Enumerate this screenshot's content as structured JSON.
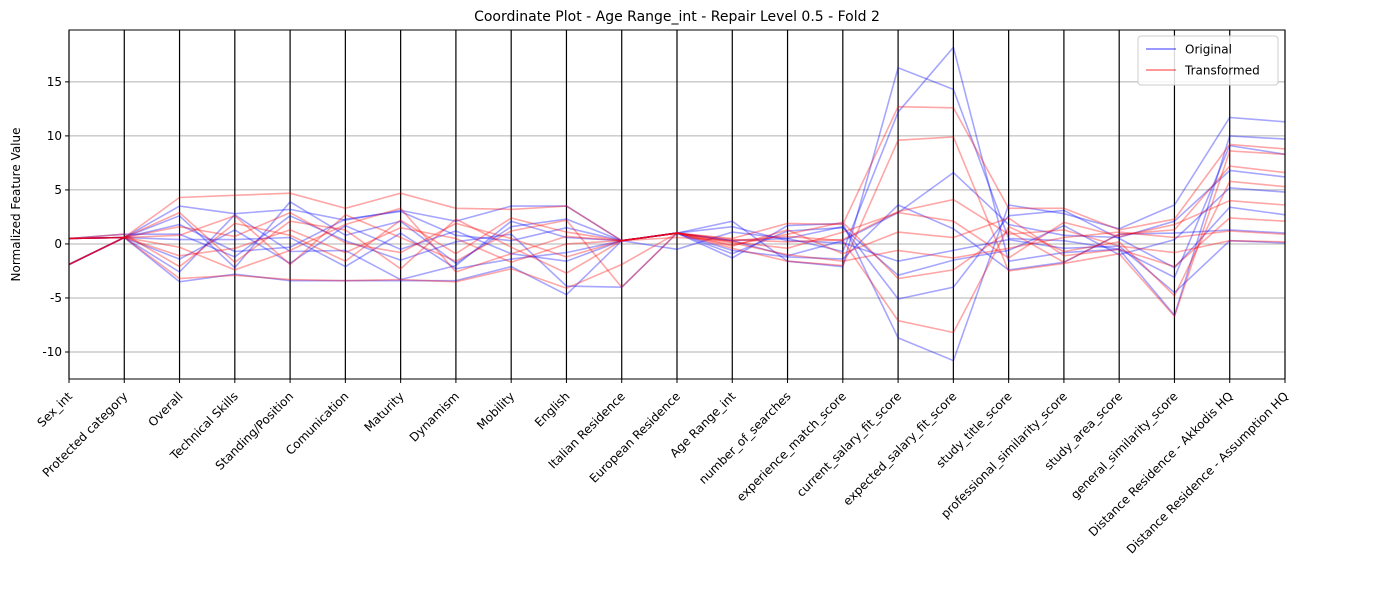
{
  "chart_data": {
    "type": "parallel_coordinates",
    "title": "Coordinate Plot - Age Range_int - Repair Level 0.5 - Fold 2",
    "ylabel": "Normalized Feature Value",
    "ylim": [
      -12.5,
      19.8
    ],
    "yticks": [
      -10,
      -5,
      0,
      5,
      10,
      15
    ],
    "grid": "horizontal",
    "legend_position": "top-right",
    "colors": {
      "original": "#0000ff",
      "transformed": "#ff0000"
    },
    "axes": [
      "Sex_int",
      "Protected category",
      "Overall",
      "Technical Skills",
      "Standing/Position",
      "Comunication",
      "Maturity",
      "Dynamism",
      "Mobility",
      "English",
      "Italian Residence",
      "European Residence",
      "Age Range_int",
      "number_of_searches",
      "experience_match_score",
      "current_salary_fit_score",
      "expected_salary_fit_score",
      "study_title_score",
      "professional_similarity_score",
      "study_area_score",
      "general_similarity_score",
      "Distance Residence - Akkodis HQ",
      "Distance Residence - Assumption HQ"
    ],
    "series": [
      {
        "name": "Original",
        "color": "#0000ff",
        "lines": [
          [
            0.5,
            0.6,
            -3.5,
            -2.8,
            -3.4,
            -3.4,
            -3.4,
            -3.4,
            -2.1,
            -4.7,
            0.3,
            1.0,
            2.1,
            -1.6,
            -2.1,
            16.3,
            14.3,
            0.5,
            0.3,
            -0.5,
            -6.6,
            10.0,
            9.7
          ],
          [
            0.5,
            0.6,
            3.5,
            2.8,
            3.2,
            2.2,
            3.1,
            2.1,
            3.5,
            3.5,
            0.3,
            1.0,
            -1.3,
            1.7,
            1.9,
            -8.7,
            -10.8,
            3.6,
            2.8,
            1.4,
            3.6,
            11.7,
            11.3
          ],
          [
            -1.9,
            0.6,
            -2.6,
            2.7,
            -0.7,
            -0.6,
            -3.3,
            -2.0,
            2.1,
            0.6,
            0.3,
            1.0,
            0.3,
            0.5,
            -0.7,
            12.2,
            18.2,
            -1.6,
            -0.8,
            -0.5,
            -3.1,
            9.1,
            8.3
          ],
          [
            0.5,
            0.9,
            0.9,
            -1.2,
            2.6,
            0.3,
            -1.5,
            0.2,
            0.9,
            -3.9,
            -4.0,
            1.0,
            0.3,
            -1.1,
            0.3,
            2.9,
            6.6,
            1.8,
            0.8,
            0.6,
            2.1,
            6.8,
            6.2
          ],
          [
            -1.9,
            0.6,
            2.6,
            -2.2,
            3.9,
            0.8,
            2.1,
            -1.8,
            1.6,
            2.3,
            0.3,
            -0.5,
            1.1,
            0.5,
            1.6,
            -5.1,
            -4.0,
            2.6,
            3.1,
            0.5,
            -2.2,
            3.4,
            2.7
          ],
          [
            0.5,
            0.6,
            -1.4,
            1.3,
            -1.8,
            1.7,
            -0.5,
            1.2,
            -0.9,
            -1.6,
            0.3,
            1.0,
            -0.6,
            -1.2,
            -1.4,
            3.6,
            1.4,
            -2.4,
            -1.7,
            0.9,
            1.0,
            1.3,
            1.0
          ],
          [
            -1.9,
            0.6,
            0.4,
            0.4,
            0.6,
            -2.1,
            1.0,
            -2.3,
            -1.4,
            -0.8,
            0.3,
            1.0,
            1.6,
            0.3,
            0.1,
            -1.6,
            -0.6,
            0.4,
            -0.4,
            -0.2,
            -4.5,
            0.3,
            0.1
          ],
          [
            0.5,
            0.6,
            1.8,
            -0.7,
            -0.3,
            2.3,
            3.0,
            0.8,
            0.3,
            1.5,
            0.3,
            1.0,
            -0.9,
            1.2,
            1.5,
            -2.9,
            -1.5,
            -0.6,
            1.7,
            -1.0,
            0.4,
            5.2,
            4.8
          ]
        ]
      },
      {
        "name": "Transformed",
        "color": "#ff0000",
        "lines": [
          [
            0.5,
            0.6,
            4.3,
            4.5,
            4.7,
            3.3,
            4.7,
            3.3,
            3.2,
            3.5,
            0.3,
            1.0,
            0.5,
            1.9,
            1.8,
            12.7,
            12.6,
            3.3,
            3.3,
            1.3,
            2.3,
            9.2,
            8.8
          ],
          [
            -1.9,
            0.6,
            -3.2,
            -2.9,
            -3.3,
            -3.4,
            -3.3,
            -3.5,
            -2.3,
            -4.1,
            -1.9,
            1.0,
            -0.4,
            -1.6,
            -2.0,
            9.6,
            9.9,
            -2.5,
            -1.8,
            -0.9,
            -6.7,
            8.6,
            8.3
          ],
          [
            0.5,
            0.9,
            -2.1,
            1.9,
            0.8,
            -1.6,
            2.2,
            -0.9,
            2.4,
            1.1,
            0.3,
            0.6,
            0.3,
            0.7,
            0.3,
            -7.1,
            -8.2,
            1.6,
            -0.7,
            0.2,
            -4.8,
            5.8,
            5.3
          ],
          [
            -1.9,
            0.6,
            2.9,
            -1.7,
            2.1,
            1.3,
            -2.3,
            2.3,
            -0.3,
            -2.7,
            0.3,
            1.0,
            0.2,
            -0.4,
            1.1,
            2.9,
            2.1,
            -1.3,
            2.0,
            0.7,
            1.8,
            4.0,
            3.6
          ],
          [
            0.5,
            0.6,
            0.8,
            2.6,
            -1.9,
            2.7,
            0.6,
            -1.6,
            1.2,
            2.2,
            -4.0,
            1.0,
            -0.2,
            1.3,
            -0.9,
            1.1,
            0.6,
            2.4,
            -1.1,
            -0.5,
            -2.1,
            2.4,
            2.1
          ],
          [
            0.5,
            0.6,
            -1.1,
            -0.4,
            1.3,
            -0.8,
            1.5,
            0.5,
            -1.7,
            0.0,
            0.3,
            1.0,
            0.1,
            -1.0,
            -1.6,
            -0.6,
            -1.3,
            -0.4,
            0.6,
            1.1,
            0.6,
            1.2,
            0.9
          ],
          [
            -1.9,
            0.6,
            1.6,
            0.7,
            2.9,
            0.1,
            -0.8,
            1.9,
            0.5,
            -1.2,
            0.3,
            1.0,
            0.4,
            0.2,
            0.4,
            3.0,
            4.1,
            0.9,
            1.3,
            -0.2,
            -0.8,
            0.3,
            0.2
          ],
          [
            0.5,
            0.6,
            -0.3,
            -2.4,
            -0.6,
            1.8,
            3.3,
            -2.6,
            -0.9,
            0.7,
            0.3,
            1.0,
            -0.1,
            0.9,
            2.0,
            -3.2,
            -2.4,
            1.2,
            -1.7,
            0.9,
            1.3,
            7.2,
            6.6
          ]
        ]
      }
    ]
  }
}
